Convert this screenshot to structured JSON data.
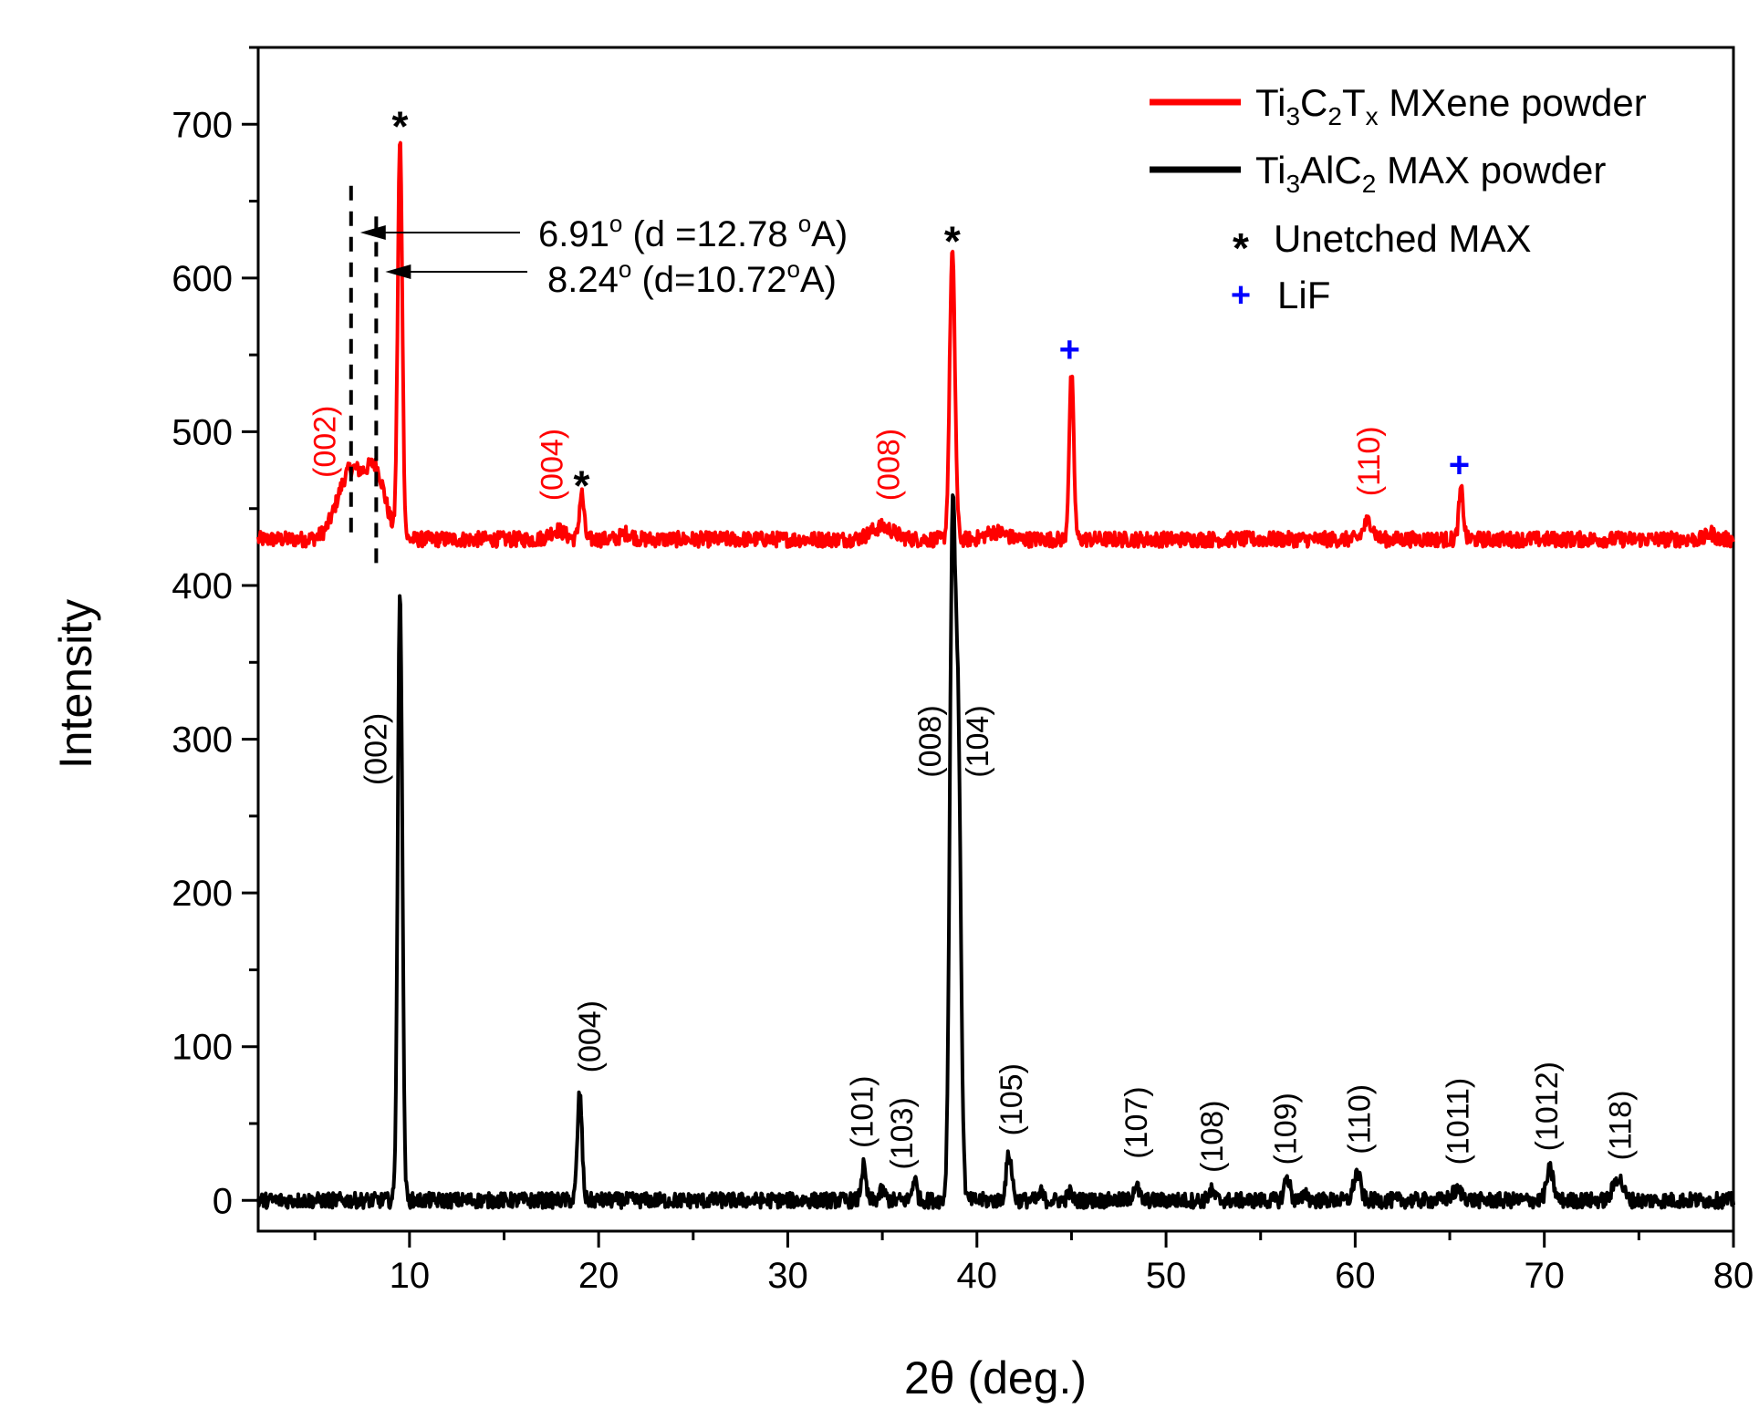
{
  "chart_data": {
    "type": "line",
    "xlabel": "2θ (deg.)",
    "ylabel": "Intensity",
    "xlim": [
      2,
      80
    ],
    "ylim": [
      -20,
      750
    ],
    "x_ticks": [
      10,
      20,
      30,
      40,
      50,
      60,
      70,
      80
    ],
    "y_ticks": [
      0,
      100,
      200,
      300,
      400,
      500,
      600,
      700
    ],
    "colors": {
      "mxene": "#ff0000",
      "max": "#000000",
      "lif": "#0000ff"
    },
    "series": [
      {
        "key": "mxene",
        "name": "Ti3C2Tx MXene powder",
        "baseline": 430,
        "noise": 5,
        "peaks": [
          {
            "x": 6.91,
            "h": 45,
            "w": 0.7
          },
          {
            "x": 8.24,
            "h": 40,
            "w": 0.5
          },
          {
            "x": 9.5,
            "h": 258,
            "w": 0.12
          },
          {
            "x": 17.8,
            "h": 6,
            "w": 0.4
          },
          {
            "x": 19.1,
            "h": 30,
            "w": 0.12
          },
          {
            "x": 21.5,
            "h": 4,
            "w": 0.3
          },
          {
            "x": 35.0,
            "h": 8,
            "w": 0.6
          },
          {
            "x": 38.7,
            "h": 187,
            "w": 0.14
          },
          {
            "x": 41.0,
            "h": 5,
            "w": 0.5
          },
          {
            "x": 45.0,
            "h": 107,
            "w": 0.12
          },
          {
            "x": 60.7,
            "h": 12,
            "w": 0.25
          },
          {
            "x": 65.6,
            "h": 32,
            "w": 0.12
          },
          {
            "x": 78.8,
            "h": 4,
            "w": 0.2
          }
        ]
      },
      {
        "key": "max",
        "name": "Ti3AlC2 MAX powder",
        "baseline": 0,
        "noise": 5,
        "peaks": [
          {
            "x": 9.5,
            "h": 398,
            "w": 0.12
          },
          {
            "x": 19.0,
            "h": 70,
            "w": 0.12
          },
          {
            "x": 34.0,
            "h": 22,
            "w": 0.12
          },
          {
            "x": 35.0,
            "h": 6,
            "w": 0.15
          },
          {
            "x": 36.7,
            "h": 14,
            "w": 0.12
          },
          {
            "x": 38.7,
            "h": 410,
            "w": 0.14
          },
          {
            "x": 39.0,
            "h": 300,
            "w": 0.15
          },
          {
            "x": 41.7,
            "h": 30,
            "w": 0.15
          },
          {
            "x": 43.4,
            "h": 5,
            "w": 0.1
          },
          {
            "x": 44.9,
            "h": 5,
            "w": 0.12
          },
          {
            "x": 48.4,
            "h": 10,
            "w": 0.15
          },
          {
            "x": 52.4,
            "h": 6,
            "w": 0.15
          },
          {
            "x": 56.4,
            "h": 15,
            "w": 0.15
          },
          {
            "x": 57.4,
            "h": 5,
            "w": 0.1
          },
          {
            "x": 60.1,
            "h": 18,
            "w": 0.18
          },
          {
            "x": 65.4,
            "h": 6,
            "w": 0.3
          },
          {
            "x": 70.3,
            "h": 20,
            "w": 0.18
          },
          {
            "x": 73.9,
            "h": 15,
            "w": 0.25
          }
        ]
      }
    ],
    "legend": {
      "position": "top-right",
      "entries": [
        {
          "base1": "Ti",
          "sub1": "3",
          "base2": "C",
          "sub2": "2",
          "base3": "T",
          "sub3": "x",
          "rest": " MXene powder"
        },
        {
          "base1": "Ti",
          "sub1": "3",
          "base2": "AlC",
          "sub2": "2",
          "rest": " MAX powder"
        }
      ],
      "star_symbol": "*",
      "star_label": "Unetched MAX",
      "plus_symbol": "+",
      "plus_label": "LiF"
    },
    "annotations": {
      "d_spacing": [
        {
          "x": 6.91,
          "main": "6.91",
          "deg": "o",
          "mid": " (d =12.78 ",
          "ang": "o",
          "tail": "A)"
        },
        {
          "x": 8.24,
          "main": "8.24",
          "deg": "o",
          "mid": " (d=10.72",
          "ang": "o",
          "tail": "A)"
        }
      ],
      "mxene_hkl": [
        {
          "label": "(002)",
          "x": 5.5,
          "y": 470
        },
        {
          "label": "(004)",
          "x": 17.5,
          "y": 455
        },
        {
          "label": "(008)",
          "x": 35.3,
          "y": 455
        },
        {
          "label": "(110)",
          "x": 60.7,
          "y": 458
        }
      ],
      "max_hkl": [
        {
          "label": "(002)",
          "x": 8.2,
          "y": 270
        },
        {
          "label": "(004)",
          "x": 19.5,
          "y": 83
        },
        {
          "label": "(101)",
          "x": 33.9,
          "y": 34
        },
        {
          "label": "(103)",
          "x": 36.0,
          "y": 20
        },
        {
          "label": "(008)",
          "x": 37.5,
          "y": 275
        },
        {
          "label": "(104)",
          "x": 40.0,
          "y": 275
        },
        {
          "label": "(105)",
          "x": 41.8,
          "y": 42
        },
        {
          "label": "(107)",
          "x": 48.4,
          "y": 27
        },
        {
          "label": "(108)",
          "x": 52.4,
          "y": 18
        },
        {
          "label": "(109)",
          "x": 56.3,
          "y": 23
        },
        {
          "label": "(110)",
          "x": 60.2,
          "y": 30
        },
        {
          "label": "(1011)",
          "x": 65.4,
          "y": 23
        },
        {
          "label": "(1012)",
          "x": 70.1,
          "y": 32
        },
        {
          "label": "(118)",
          "x": 74.0,
          "y": 26
        }
      ],
      "stars": [
        {
          "x": 9.5,
          "y": 700
        },
        {
          "x": 19.1,
          "y": 466
        },
        {
          "x": 38.7,
          "y": 625
        }
      ],
      "pluses": [
        {
          "x": 44.9,
          "y": 554
        },
        {
          "x": 65.5,
          "y": 479
        }
      ]
    }
  }
}
